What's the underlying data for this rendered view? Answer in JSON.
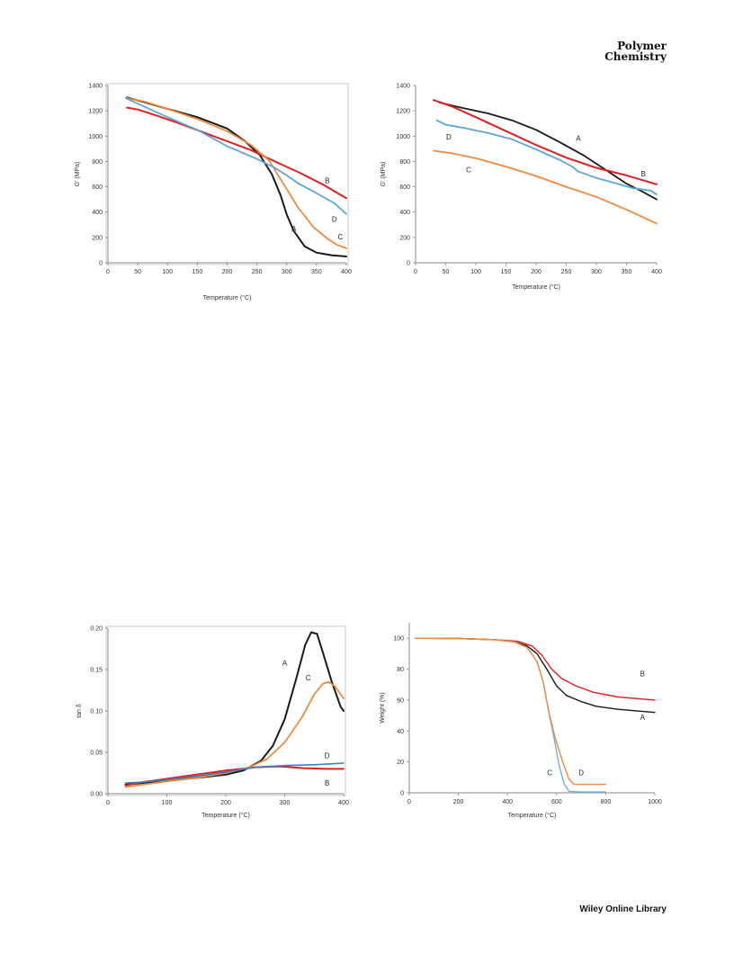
{
  "header": {
    "journal_line1": "Polymer",
    "journal_line2": "Chemistry"
  },
  "footer": {
    "text": "Wiley Online Library"
  },
  "chart_data": [
    {
      "type": "line",
      "xlabel": "Temperature (°C)",
      "ylabel": "G' (MPa)",
      "xlim": [
        0,
        400
      ],
      "ylim": [
        0,
        1400
      ],
      "xticks": [
        0,
        50,
        100,
        150,
        200,
        250,
        300,
        350,
        400
      ],
      "yticks": [
        0,
        200,
        400,
        600,
        800,
        1000,
        1200,
        1400
      ],
      "frame": true,
      "series": [
        {
          "name": "A",
          "color": "#1a1a1a",
          "width": 2.0,
          "label_at": [
            312,
            270
          ],
          "points": [
            [
              32,
              1305
            ],
            [
              60,
              1270
            ],
            [
              100,
              1215
            ],
            [
              150,
              1150
            ],
            [
              200,
              1060
            ],
            [
              230,
              960
            ],
            [
              255,
              850
            ],
            [
              275,
              700
            ],
            [
              290,
              530
            ],
            [
              300,
              380
            ],
            [
              312,
              250
            ],
            [
              330,
              130
            ],
            [
              350,
              80
            ],
            [
              375,
              60
            ],
            [
              400,
              50
            ]
          ]
        },
        {
          "name": "B",
          "color": "#e02020",
          "width": 2.0,
          "label_at": [
            368,
            650
          ],
          "points": [
            [
              32,
              1225
            ],
            [
              50,
              1210
            ],
            [
              80,
              1165
            ],
            [
              120,
              1100
            ],
            [
              160,
              1030
            ],
            [
              200,
              960
            ],
            [
              240,
              890
            ],
            [
              280,
              800
            ],
            [
              320,
              715
            ],
            [
              360,
              620
            ],
            [
              400,
              510
            ]
          ]
        },
        {
          "name": "C",
          "color": "#f08a3c",
          "width": 1.8,
          "label_at": [
            390,
            205
          ],
          "points": [
            [
              32,
              1300
            ],
            [
              60,
              1275
            ],
            [
              100,
              1215
            ],
            [
              150,
              1135
            ],
            [
              200,
              1040
            ],
            [
              240,
              930
            ],
            [
              270,
              810
            ],
            [
              295,
              620
            ],
            [
              320,
              430
            ],
            [
              345,
              280
            ],
            [
              370,
              185
            ],
            [
              385,
              140
            ],
            [
              400,
              115
            ]
          ]
        },
        {
          "name": "D",
          "color": "#5aa7dc",
          "width": 1.8,
          "label_at": [
            380,
            345
          ],
          "points": [
            [
              30,
              1300
            ],
            [
              60,
              1235
            ],
            [
              100,
              1150
            ],
            [
              150,
              1050
            ],
            [
              200,
              920
            ],
            [
              250,
              820
            ],
            [
              280,
              750
            ],
            [
              300,
              690
            ],
            [
              320,
              625
            ],
            [
              350,
              550
            ],
            [
              380,
              470
            ],
            [
              400,
              385
            ]
          ]
        }
      ]
    },
    {
      "type": "line",
      "xlabel": "Temperature (°C)",
      "ylabel": "G' (MPa)",
      "xlim": [
        0,
        400
      ],
      "ylim": [
        0,
        1400
      ],
      "xticks": [
        0,
        50,
        100,
        150,
        200,
        250,
        300,
        350,
        400
      ],
      "yticks": [
        0,
        200,
        400,
        600,
        800,
        1000,
        1200,
        1400
      ],
      "frame": false,
      "series": [
        {
          "name": "A",
          "color": "#1a1a1a",
          "width": 1.8,
          "label_at": [
            270,
            985
          ],
          "points": [
            [
              40,
              1265
            ],
            [
              80,
              1220
            ],
            [
              120,
              1180
            ],
            [
              160,
              1125
            ],
            [
              200,
              1050
            ],
            [
              240,
              950
            ],
            [
              280,
              845
            ],
            [
              320,
              720
            ],
            [
              350,
              625
            ],
            [
              375,
              565
            ],
            [
              400,
              500
            ]
          ]
        },
        {
          "name": "B",
          "color": "#e02020",
          "width": 2.0,
          "label_at": [
            378,
            705
          ],
          "points": [
            [
              30,
              1285
            ],
            [
              60,
              1235
            ],
            [
              100,
              1150
            ],
            [
              150,
              1040
            ],
            [
              200,
              930
            ],
            [
              250,
              830
            ],
            [
              300,
              750
            ],
            [
              350,
              690
            ],
            [
              400,
              620
            ]
          ]
        },
        {
          "name": "C",
          "color": "#f08a3c",
          "width": 1.8,
          "label_at": [
            88,
            735
          ],
          "points": [
            [
              30,
              885
            ],
            [
              60,
              865
            ],
            [
              100,
              825
            ],
            [
              150,
              760
            ],
            [
              200,
              685
            ],
            [
              250,
              600
            ],
            [
              300,
              520
            ],
            [
              350,
              420
            ],
            [
              400,
              310
            ]
          ]
        },
        {
          "name": "D",
          "color": "#5aa7dc",
          "width": 1.8,
          "label_at": [
            55,
            995
          ],
          "points": [
            [
              35,
              1125
            ],
            [
              50,
              1090
            ],
            [
              80,
              1065
            ],
            [
              120,
              1025
            ],
            [
              160,
              975
            ],
            [
              200,
              895
            ],
            [
              240,
              810
            ],
            [
              260,
              760
            ],
            [
              270,
              720
            ],
            [
              280,
              705
            ],
            [
              300,
              670
            ],
            [
              330,
              630
            ],
            [
              360,
              590
            ],
            [
              390,
              570
            ],
            [
              400,
              540
            ]
          ]
        }
      ]
    },
    {
      "type": "line",
      "xlabel": "Temperature (°C)",
      "ylabel": "tan δ",
      "xlim": [
        0,
        400
      ],
      "ylim": [
        0,
        0.2
      ],
      "xticks": [
        0,
        100,
        200,
        300,
        400
      ],
      "yticks": [
        0.0,
        0.05,
        0.1,
        0.15,
        0.2
      ],
      "ytick_labels": [
        "0.00",
        "0.05",
        "0.10",
        "0.15",
        "0.20"
      ],
      "frame": true,
      "series": [
        {
          "name": "A",
          "color": "#1a1a1a",
          "width": 2.0,
          "label_at": [
            300,
            0.158
          ],
          "points": [
            [
              30,
              0.011
            ],
            [
              60,
              0.013
            ],
            [
              100,
              0.016
            ],
            [
              150,
              0.019
            ],
            [
              200,
              0.023
            ],
            [
              230,
              0.028
            ],
            [
              260,
              0.04
            ],
            [
              280,
              0.058
            ],
            [
              300,
              0.09
            ],
            [
              320,
              0.14
            ],
            [
              335,
              0.18
            ],
            [
              345,
              0.195
            ],
            [
              355,
              0.193
            ],
            [
              365,
              0.17
            ],
            [
              380,
              0.135
            ],
            [
              395,
              0.105
            ],
            [
              400,
              0.1
            ]
          ]
        },
        {
          "name": "B",
          "color": "#e02020",
          "width": 2.0,
          "label_at": [
            372,
            0.013
          ],
          "points": [
            [
              30,
              0.01
            ],
            [
              50,
              0.013
            ],
            [
              100,
              0.018
            ],
            [
              150,
              0.023
            ],
            [
              200,
              0.028
            ],
            [
              250,
              0.032
            ],
            [
              290,
              0.033
            ],
            [
              330,
              0.031
            ],
            [
              370,
              0.03
            ],
            [
              400,
              0.03
            ]
          ]
        },
        {
          "name": "C",
          "color": "#f08a3c",
          "width": 1.8,
          "label_at": [
            340,
            0.14
          ],
          "points": [
            [
              30,
              0.008
            ],
            [
              60,
              0.011
            ],
            [
              100,
              0.015
            ],
            [
              150,
              0.019
            ],
            [
              200,
              0.025
            ],
            [
              240,
              0.032
            ],
            [
              270,
              0.042
            ],
            [
              300,
              0.062
            ],
            [
              330,
              0.093
            ],
            [
              350,
              0.12
            ],
            [
              365,
              0.133
            ],
            [
              375,
              0.135
            ],
            [
              385,
              0.13
            ],
            [
              400,
              0.115
            ]
          ]
        },
        {
          "name": "D",
          "color": "#3a7fc4",
          "width": 1.6,
          "label_at": [
            372,
            0.046
          ],
          "points": [
            [
              30,
              0.013
            ],
            [
              60,
              0.014
            ],
            [
              100,
              0.017
            ],
            [
              150,
              0.021
            ],
            [
              200,
              0.026
            ],
            [
              250,
              0.032
            ],
            [
              300,
              0.034
            ],
            [
              350,
              0.035
            ],
            [
              400,
              0.037
            ]
          ]
        }
      ]
    },
    {
      "type": "line",
      "xlabel": "Temperature (°C)",
      "ylabel": "Weight (%)",
      "xlim": [
        0,
        1000
      ],
      "ylim": [
        0,
        110
      ],
      "xticks": [
        0,
        200,
        400,
        600,
        800,
        1000
      ],
      "yticks": [
        0,
        20,
        40,
        60,
        80,
        100
      ],
      "frame": false,
      "series": [
        {
          "name": "A",
          "color": "#1a1a1a",
          "width": 1.4,
          "label_at": [
            950,
            49
          ],
          "points": [
            [
              25,
              100
            ],
            [
              200,
              99.8
            ],
            [
              350,
              99
            ],
            [
              420,
              98
            ],
            [
              480,
              95
            ],
            [
              520,
              90
            ],
            [
              560,
              80
            ],
            [
              600,
              69
            ],
            [
              640,
              63
            ],
            [
              700,
              59
            ],
            [
              760,
              56
            ],
            [
              850,
              54
            ],
            [
              1000,
              52
            ]
          ]
        },
        {
          "name": "B",
          "color": "#e02020",
          "width": 1.4,
          "label_at": [
            950,
            77
          ],
          "points": [
            [
              25,
              100
            ],
            [
              200,
              99.8
            ],
            [
              350,
              99
            ],
            [
              440,
              98
            ],
            [
              500,
              95
            ],
            [
              540,
              89
            ],
            [
              580,
              80
            ],
            [
              620,
              74
            ],
            [
              680,
              69
            ],
            [
              750,
              65
            ],
            [
              850,
              62
            ],
            [
              1000,
              60
            ]
          ]
        },
        {
          "name": "C",
          "color": "#6ab4e4",
          "width": 1.4,
          "label_at": [
            572,
            13
          ],
          "points": [
            [
              25,
              100
            ],
            [
              200,
              99.8
            ],
            [
              350,
              99
            ],
            [
              430,
              97.5
            ],
            [
              480,
              94
            ],
            [
              520,
              85
            ],
            [
              545,
              72
            ],
            [
              565,
              55
            ],
            [
              590,
              35
            ],
            [
              610,
              18
            ],
            [
              630,
              6
            ],
            [
              650,
              1
            ],
            [
              700,
              0.5
            ],
            [
              800,
              0.5
            ]
          ]
        },
        {
          "name": "D",
          "color": "#f08a3c",
          "width": 1.4,
          "label_at": [
            700,
            13
          ],
          "points": [
            [
              25,
              100
            ],
            [
              200,
              99.8
            ],
            [
              350,
              99
            ],
            [
              430,
              97.5
            ],
            [
              480,
              94
            ],
            [
              520,
              85
            ],
            [
              545,
              72
            ],
            [
              565,
              55
            ],
            [
              595,
              35
            ],
            [
              625,
              20
            ],
            [
              650,
              9
            ],
            [
              670,
              5.5
            ],
            [
              700,
              5.5
            ],
            [
              800,
              5.5
            ]
          ]
        }
      ]
    }
  ]
}
